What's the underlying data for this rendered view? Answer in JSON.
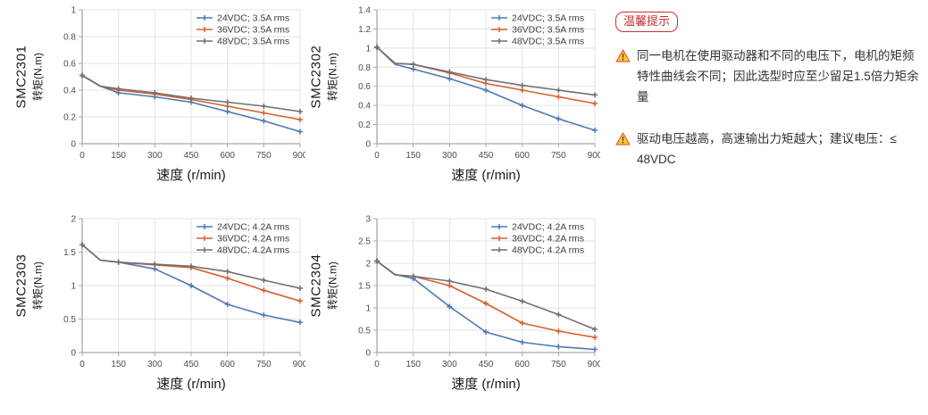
{
  "colors": {
    "series_24vdc": "#4a79b5",
    "series_36vdc": "#d8602b",
    "series_48vdc": "#6e7072",
    "grid": "#e3e3e3",
    "axis": "#a8a8a8",
    "tick_text": "#4d4d4d",
    "label_text": "#1a1a1a",
    "legend_text": "#3d3d3d",
    "badge_red": "#c53230",
    "warning_yellow": "#f9c841",
    "warning_orange": "#e8622d",
    "note_text": "#333333"
  },
  "notes": {
    "badge": "温馨提示",
    "items": [
      {
        "icon": "warning-triangle-icon",
        "text": "同一电机在使用驱动器和不同的电压下，电机的矩频特性曲线会不同；因此选型时应至少留足1.5倍力矩余量"
      },
      {
        "icon": "warning-triangle-icon",
        "text": "驱动电压越高，高速输出力矩越大；建议电压：≤ 48VDC"
      }
    ]
  },
  "chart_data": [
    {
      "type": "line",
      "model": "SMC2301",
      "ylabel": "转矩(N.m)",
      "xlabel": "速度 (r/min)",
      "x": [
        0,
        75,
        150,
        300,
        450,
        600,
        750,
        900
      ],
      "xticks": [
        0,
        150,
        300,
        450,
        600,
        750,
        900
      ],
      "ylim": [
        0,
        1
      ],
      "yticks": [
        0,
        0.2,
        0.4,
        0.6,
        0.8,
        1
      ],
      "grid": true,
      "legend_position": "top-right",
      "series": [
        {
          "name": "24VDC; 3.5A rms",
          "color": "#4a79b5",
          "values": [
            0.51,
            0.43,
            0.38,
            0.35,
            0.31,
            0.24,
            0.17,
            0.09
          ]
        },
        {
          "name": "36VDC; 3.5A rms",
          "color": "#d8602b",
          "values": [
            0.51,
            0.43,
            0.4,
            0.37,
            0.33,
            0.28,
            0.23,
            0.18
          ]
        },
        {
          "name": "48VDC; 3.5A rms",
          "color": "#6e7072",
          "values": [
            0.51,
            0.43,
            0.41,
            0.38,
            0.34,
            0.31,
            0.28,
            0.24
          ]
        }
      ]
    },
    {
      "type": "line",
      "model": "SMC2302",
      "ylabel": "转矩(N.m)",
      "xlabel": "速度 (r/min)",
      "x": [
        0,
        75,
        150,
        300,
        450,
        600,
        750,
        900
      ],
      "xticks": [
        0,
        150,
        300,
        450,
        600,
        750,
        900
      ],
      "ylim": [
        0,
        1.4
      ],
      "yticks": [
        0,
        0.2,
        0.4,
        0.6,
        0.8,
        1,
        1.2,
        1.4
      ],
      "grid": true,
      "legend_position": "top-right",
      "series": [
        {
          "name": "24VDC; 3.5A rms",
          "color": "#4a79b5",
          "values": [
            1.01,
            0.83,
            0.78,
            0.68,
            0.56,
            0.4,
            0.26,
            0.14
          ]
        },
        {
          "name": "36VDC; 3.5A rms",
          "color": "#d8602b",
          "values": [
            1.01,
            0.84,
            0.83,
            0.74,
            0.63,
            0.56,
            0.49,
            0.42
          ]
        },
        {
          "name": "48VDC; 3.5A rms",
          "color": "#6e7072",
          "values": [
            1.01,
            0.84,
            0.83,
            0.75,
            0.67,
            0.61,
            0.56,
            0.51
          ]
        }
      ]
    },
    {
      "type": "line",
      "model": "SMC2303",
      "ylabel": "转矩(N.m)",
      "xlabel": "速度 (r/min)",
      "x": [
        0,
        75,
        150,
        300,
        450,
        600,
        750,
        900
      ],
      "xticks": [
        0,
        150,
        300,
        450,
        600,
        750,
        900
      ],
      "ylim": [
        0,
        2
      ],
      "yticks": [
        0,
        0.5,
        1,
        1.5,
        2
      ],
      "grid": true,
      "legend_position": "top-right",
      "series": [
        {
          "name": "24VDC; 4.2A rms",
          "color": "#4a79b5",
          "values": [
            1.61,
            1.38,
            1.35,
            1.25,
            1.0,
            0.72,
            0.56,
            0.45
          ]
        },
        {
          "name": "36VDC; 4.2A rms",
          "color": "#d8602b",
          "values": [
            1.61,
            1.38,
            1.35,
            1.31,
            1.27,
            1.11,
            0.93,
            0.77
          ]
        },
        {
          "name": "48VDC; 4.2A rms",
          "color": "#6e7072",
          "values": [
            1.61,
            1.38,
            1.35,
            1.32,
            1.29,
            1.21,
            1.08,
            0.96
          ]
        }
      ]
    },
    {
      "type": "line",
      "model": "SMC2304",
      "ylabel": "转矩(N.m)",
      "xlabel": "速度 (r/min)",
      "x": [
        0,
        75,
        150,
        300,
        450,
        600,
        750,
        900
      ],
      "xticks": [
        0,
        150,
        300,
        450,
        600,
        750,
        900
      ],
      "ylim": [
        0,
        3
      ],
      "yticks": [
        0,
        0.5,
        1,
        1.5,
        2,
        2.5,
        3
      ],
      "grid": true,
      "legend_position": "top-right",
      "series": [
        {
          "name": "24VDC; 4.2A rms",
          "color": "#4a79b5",
          "values": [
            2.05,
            1.75,
            1.66,
            1.03,
            0.46,
            0.23,
            0.13,
            0.07
          ]
        },
        {
          "name": "36VDC; 4.2A rms",
          "color": "#d8602b",
          "values": [
            2.05,
            1.74,
            1.71,
            1.5,
            1.1,
            0.66,
            0.48,
            0.34
          ]
        },
        {
          "name": "48VDC; 4.2A rms",
          "color": "#6e7072",
          "values": [
            2.05,
            1.74,
            1.71,
            1.6,
            1.42,
            1.15,
            0.85,
            0.52
          ]
        }
      ]
    }
  ]
}
